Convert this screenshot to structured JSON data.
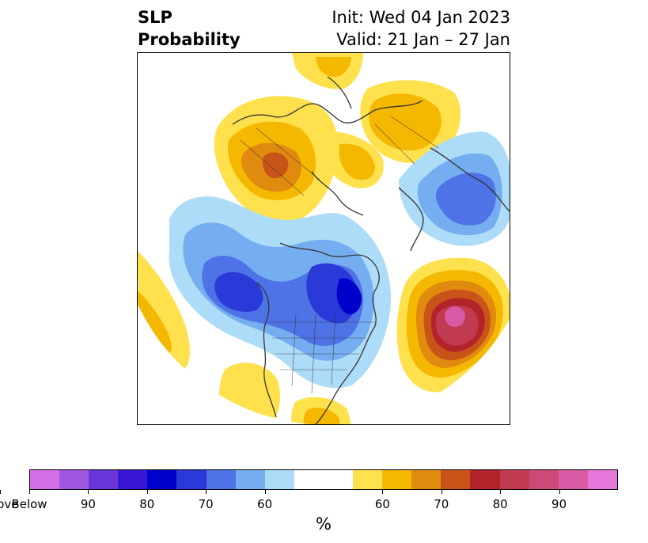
{
  "title": {
    "variable": "SLP",
    "product": "Probability",
    "init": "Init: Wed 04 Jan 2023",
    "valid": "Valid: 21 Jan – 27 Jan"
  },
  "colorbar": {
    "unit": "%",
    "colors": [
      "#d46ee6",
      "#9f55e0",
      "#6a36d9",
      "#3a17d6",
      "#0000cc",
      "#2a3ad9",
      "#4d73e6",
      "#74aef0",
      "#addcf8",
      "#ffffff",
      "#ffe14d",
      "#f5b800",
      "#e08a10",
      "#c9541a",
      "#b3242a",
      "#c23a52",
      "#cc4a7a",
      "#d75aa5",
      "#e676d8"
    ],
    "segment_widths": [
      1,
      1,
      1,
      1,
      1,
      1,
      1,
      1,
      1,
      2,
      1,
      1,
      1,
      1,
      1,
      1,
      1,
      1,
      1
    ],
    "tick_labels": [
      "Below",
      "90",
      "80",
      "70",
      "60",
      "60",
      "70",
      "80",
      "90",
      "Above"
    ]
  },
  "map": {
    "projection": "north-polar-stereographic",
    "land_color": "#ffffff",
    "coastline_color": "#333333"
  }
}
